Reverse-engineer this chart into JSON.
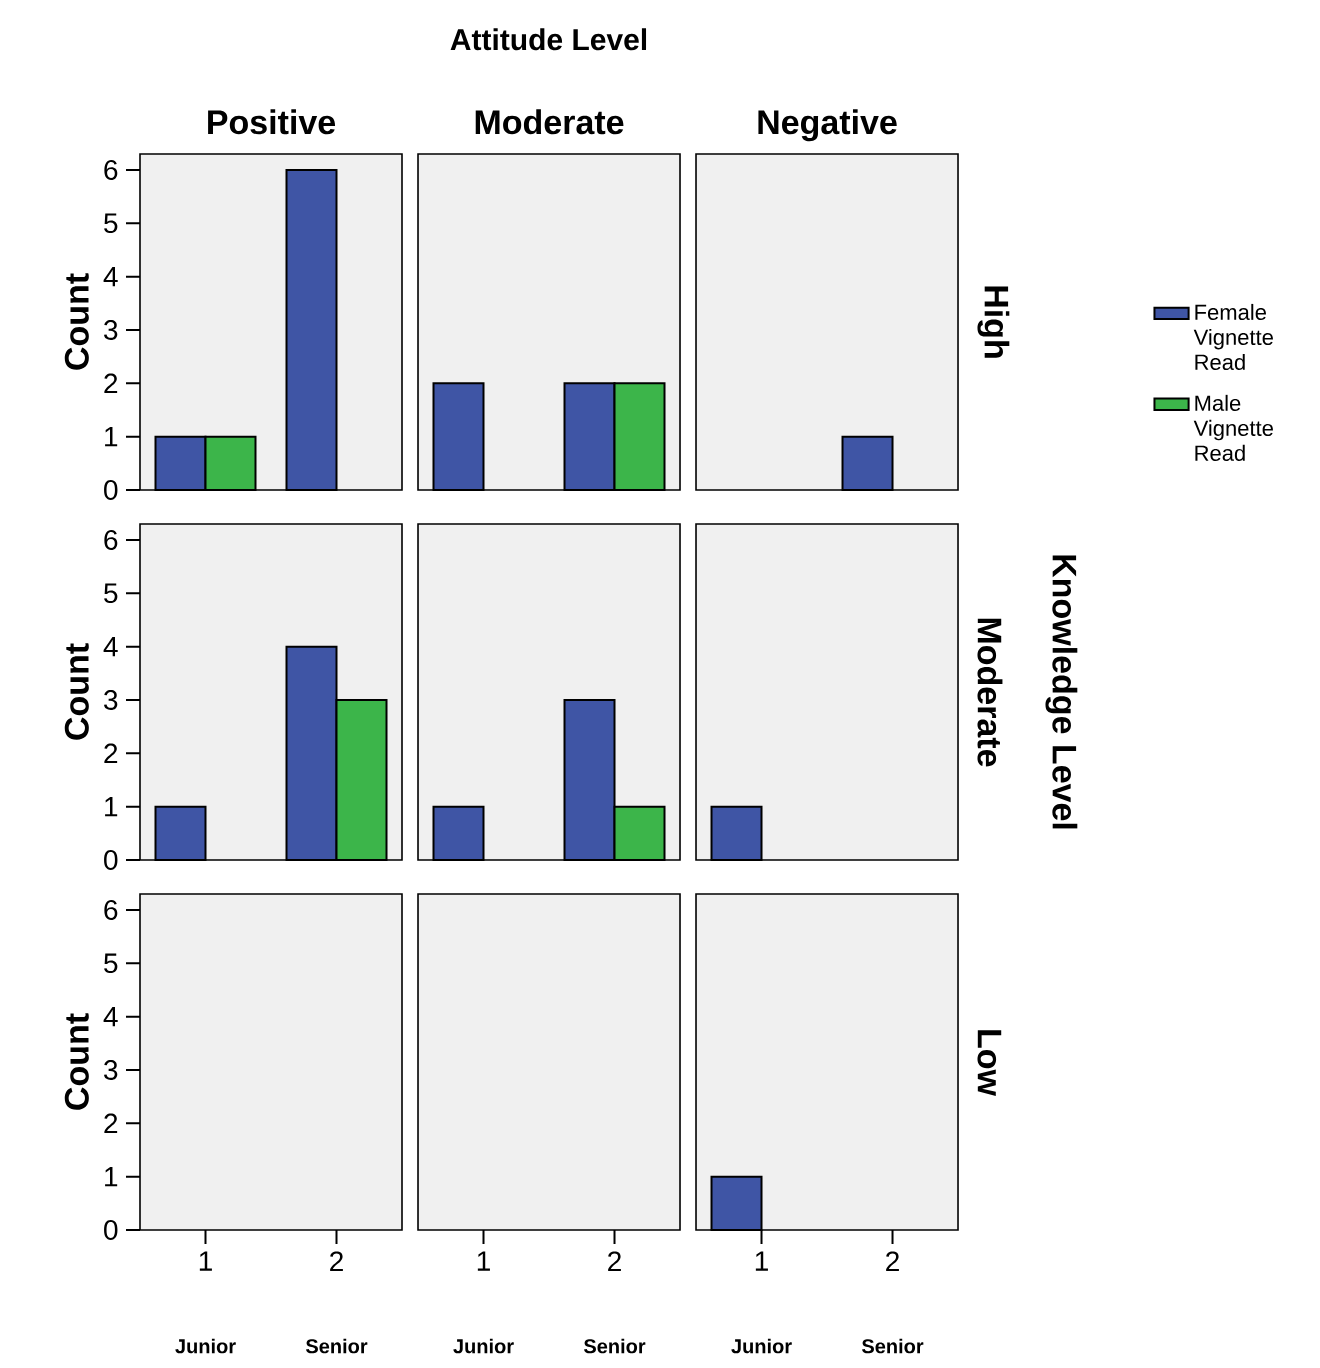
{
  "chart_data": [
    {
      "type": "bar",
      "subtitle": "Positive",
      "ylabel": "Count",
      "categories": [
        "1",
        "2"
      ],
      "tick_labels": "y",
      "ylim": [
        0,
        6.3
      ],
      "yticks": [
        0,
        1,
        2,
        3,
        4,
        5,
        6
      ],
      "series": [
        {
          "color": "#3f55a5",
          "values": [
            1,
            6
          ]
        },
        {
          "color": "#3cb54a",
          "values": [
            1,
            null
          ]
        }
      ]
    },
    {
      "type": "bar",
      "title": "Attitude Level",
      "subtitle": "Moderate",
      "categories": [
        "1",
        "2"
      ],
      "tick_labels": false,
      "ylim": [
        0,
        6.3
      ],
      "series": [
        {
          "color": "#3f55a5",
          "values": [
            2,
            2
          ]
        },
        {
          "color": "#3cb54a",
          "values": [
            null,
            2
          ]
        }
      ]
    },
    {
      "type": "bar",
      "subtitle": "Negative",
      "y2label": "High",
      "categories": [
        "1",
        "2"
      ],
      "tick_labels": false,
      "ylim": [
        0,
        6.3
      ],
      "legend": "right",
      "series": [
        {
          "name": "Female Vignette Read",
          "color": "#3f55a5",
          "values": [
            null,
            1
          ]
        },
        {
          "name": "Male Vignette Read",
          "color": "#3cb54a",
          "values": [
            null,
            null
          ]
        }
      ]
    },
    {
      "type": "bar",
      "ylabel": "Count",
      "categories": [
        "1",
        "2"
      ],
      "tick_labels": "y",
      "ylim": [
        0,
        6.3
      ],
      "yticks": [
        0,
        1,
        2,
        3,
        4,
        5,
        6
      ],
      "series": [
        {
          "color": "#3f55a5",
          "values": [
            1,
            4
          ]
        },
        {
          "color": "#3cb54a",
          "values": [
            null,
            3
          ]
        }
      ]
    },
    {
      "type": "bar",
      "categories": [
        "1",
        "2"
      ],
      "tick_labels": false,
      "ylim": [
        0,
        6.3
      ],
      "series": [
        {
          "color": "#3f55a5",
          "values": [
            1,
            3
          ]
        },
        {
          "color": "#3cb54a",
          "values": [
            null,
            1
          ]
        }
      ]
    },
    {
      "type": "bar",
      "y2label": "Moderate",
      "annotations": [
        "Knowledge Level"
      ],
      "categories": [
        "1",
        "2"
      ],
      "tick_labels": false,
      "ylim": [
        0,
        6.3
      ],
      "series": [
        {
          "color": "#3f55a5",
          "values": [
            1,
            null
          ]
        },
        {
          "color": "#3cb54a",
          "values": [
            null,
            null
          ]
        }
      ]
    },
    {
      "type": "bar",
      "ylabel": "Count",
      "annotations": [
        "Junior",
        "Senior"
      ],
      "categories": [
        "1",
        "2"
      ],
      "ylim": [
        0,
        6.3
      ],
      "yticks": [
        0,
        1,
        2,
        3,
        4,
        5,
        6
      ],
      "series": [
        {
          "color": "#3f55a5",
          "values": [
            null,
            null
          ]
        },
        {
          "color": "#3cb54a",
          "values": [
            null,
            null
          ]
        }
      ]
    },
    {
      "type": "bar",
      "annotations": [
        "Junior",
        "Senior"
      ],
      "categories": [
        "1",
        "2"
      ],
      "tick_labels": "x",
      "ylim": [
        0,
        6.3
      ],
      "series": [
        {
          "color": "#3f55a5",
          "values": [
            null,
            null
          ]
        },
        {
          "color": "#3cb54a",
          "values": [
            null,
            null
          ]
        }
      ]
    },
    {
      "type": "bar",
      "y2label": "Low",
      "annotations": [
        "Junior",
        "Senior"
      ],
      "categories": [
        "1",
        "2"
      ],
      "tick_labels": "x",
      "ylim": [
        0,
        6.3
      ],
      "series": [
        {
          "color": "#3f55a5",
          "values": [
            1,
            null
          ]
        },
        {
          "color": "#3cb54a",
          "values": [
            null,
            null
          ]
        }
      ]
    }
  ]
}
